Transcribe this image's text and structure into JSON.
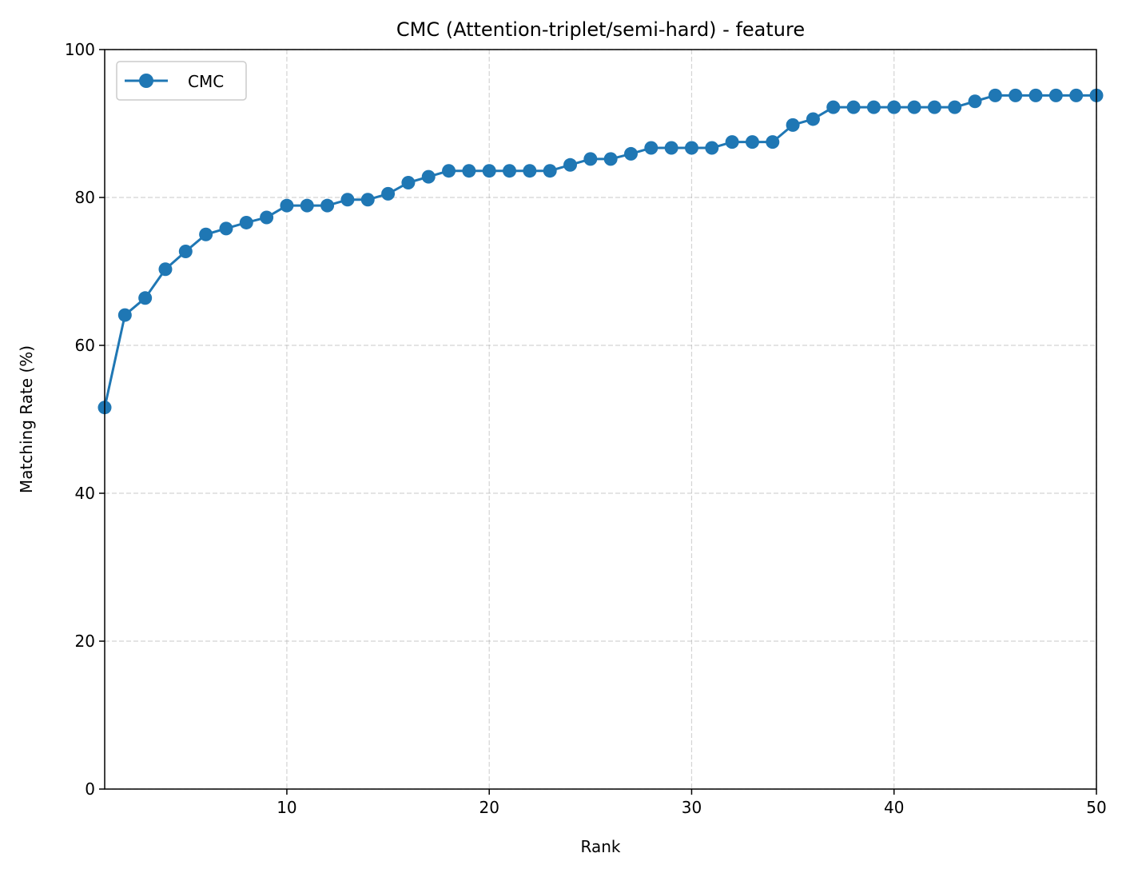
{
  "chart_data": {
    "type": "line",
    "title": "CMC (Attention-triplet/semi-hard) - feature",
    "xlabel": "Rank",
    "ylabel": "Matching Rate (%)",
    "xlim": [
      1,
      50
    ],
    "ylim": [
      0,
      100
    ],
    "xticks": [
      10,
      20,
      30,
      40,
      50
    ],
    "yticks": [
      0,
      20,
      40,
      60,
      80,
      100
    ],
    "grid": true,
    "legend_position": "top-left",
    "series": [
      {
        "name": "CMC",
        "color": "#1f77b4",
        "marker": "circle",
        "x": [
          1,
          2,
          3,
          4,
          5,
          6,
          7,
          8,
          9,
          10,
          11,
          12,
          13,
          14,
          15,
          16,
          17,
          18,
          19,
          20,
          21,
          22,
          23,
          24,
          25,
          26,
          27,
          28,
          29,
          30,
          31,
          32,
          33,
          34,
          35,
          36,
          37,
          38,
          39,
          40,
          41,
          42,
          43,
          44,
          45,
          46,
          47,
          48,
          49,
          50
        ],
        "values": [
          51.6,
          64.1,
          66.4,
          70.3,
          72.7,
          75.0,
          75.8,
          76.6,
          77.3,
          78.9,
          78.9,
          78.9,
          79.7,
          79.7,
          80.5,
          82.0,
          82.8,
          83.6,
          83.6,
          83.6,
          83.6,
          83.6,
          83.6,
          84.4,
          85.2,
          85.2,
          85.9,
          86.7,
          86.7,
          86.7,
          86.7,
          87.5,
          87.5,
          87.5,
          89.8,
          90.6,
          92.2,
          92.2,
          92.2,
          92.2,
          92.2,
          92.2,
          92.2,
          93.0,
          93.8,
          93.8,
          93.8,
          93.8,
          93.8,
          93.8
        ]
      }
    ]
  }
}
